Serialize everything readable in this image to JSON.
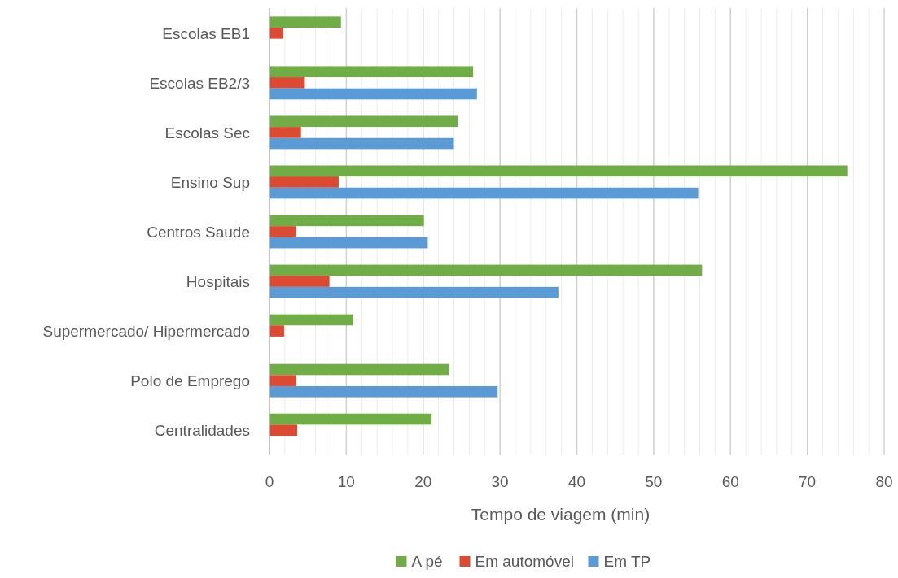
{
  "chart_data": {
    "type": "bar",
    "orientation": "horizontal",
    "xlabel": "Tempo de viagem (min)",
    "categories": [
      "Escolas EB1",
      "Escolas EB2/3",
      "Escolas Sec",
      "Ensino Sup",
      "Centros Saude",
      "Hospitais",
      "Supermercado/ Hipermercado",
      "Polo de Emprego",
      "Centralidades"
    ],
    "series": [
      {
        "name": "A pé",
        "color": "#70ad47",
        "values": [
          9.3,
          26.5,
          24.5,
          75.2,
          20.1,
          56.3,
          10.9,
          23.4,
          21.1
        ]
      },
      {
        "name": "Em automóvel",
        "color": "#db4a31",
        "values": [
          1.8,
          4.6,
          4.1,
          9.0,
          3.5,
          7.8,
          1.9,
          3.5,
          3.6
        ]
      },
      {
        "name": "Em TP",
        "color": "#5b9bd5",
        "values": [
          null,
          27.0,
          24.0,
          55.8,
          20.6,
          37.6,
          null,
          29.7,
          null
        ]
      }
    ],
    "xlim": [
      0,
      80
    ],
    "xticks": [
      0,
      {
        "value": 2,
        "label": null
      },
      {
        "value": 4,
        "label": null
      },
      {
        "value": 6,
        "label": null
      },
      {
        "value": 8,
        "label": null
      },
      10,
      {
        "value": 12,
        "label": null
      },
      {
        "value": 14,
        "label": null
      },
      {
        "value": 16,
        "label": null
      },
      {
        "value": 18,
        "label": null
      },
      20,
      {
        "value": 22,
        "label": null
      },
      {
        "value": 24,
        "label": null
      },
      {
        "value": 26,
        "label": null
      },
      {
        "value": 28,
        "label": null
      },
      30,
      {
        "value": 32,
        "label": null
      },
      {
        "value": 34,
        "label": null
      },
      {
        "value": 36,
        "label": null
      },
      {
        "value": 38,
        "label": null
      },
      40,
      {
        "value": 42,
        "label": null
      },
      {
        "value": 44,
        "label": null
      },
      {
        "value": 46,
        "label": null
      },
      {
        "value": 48,
        "label": null
      },
      50,
      {
        "value": 52,
        "label": null
      },
      {
        "value": 54,
        "label": null
      },
      {
        "value": 56,
        "label": null
      },
      {
        "value": 58,
        "label": null
      },
      60,
      {
        "value": 62,
        "label": null
      },
      {
        "value": 64,
        "label": null
      },
      {
        "value": 66,
        "label": null
      },
      {
        "value": 68,
        "label": null
      },
      70,
      {
        "value": 72,
        "label": null
      },
      {
        "value": 74,
        "label": null
      },
      {
        "value": 76,
        "label": null
      },
      {
        "value": 78,
        "label": null
      },
      80
    ],
    "grid": "x",
    "legend": "bottom"
  }
}
